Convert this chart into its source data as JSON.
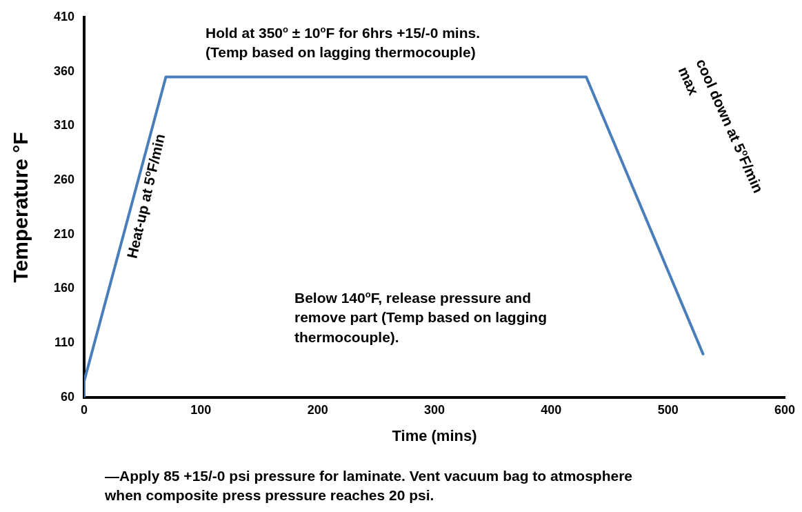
{
  "chart_data": {
    "type": "line",
    "xlabel": "Time (mins)",
    "ylabel": "Temperature °F",
    "x": [
      0,
      0,
      70,
      430,
      530
    ],
    "series": [
      {
        "color": "#4a7ebb",
        "values": [
          60,
          75,
          355,
          355,
          100
        ]
      }
    ],
    "xlim": [
      0,
      600
    ],
    "xticks": [
      0,
      100,
      200,
      300,
      400,
      500,
      600
    ],
    "ylim": [
      60,
      410
    ],
    "yticks": [
      60,
      110,
      160,
      210,
      260,
      310,
      360,
      410
    ],
    "grid": false,
    "legend": false,
    "marker": "none",
    "line_style": "solid",
    "annotations": [
      "Hold at 350$^{o}$ ± 10$^{o}$F for 6hrs +15/-0 mins.\n(Temp based on lagging thermocouple)",
      "Heat-up at 5$^{o}$F/min",
      "cool down at 5$^{o}$F/min\nmax",
      "Below 140$^{o}$F, release pressure and\nremove part (Temp based on lagging\nthermocouple).",
      "—Apply 85 +15/-0 psi pressure for laminate. Vent vacuum bag to atmosphere\nwhen composite press pressure reaches 20 psi."
    ]
  }
}
